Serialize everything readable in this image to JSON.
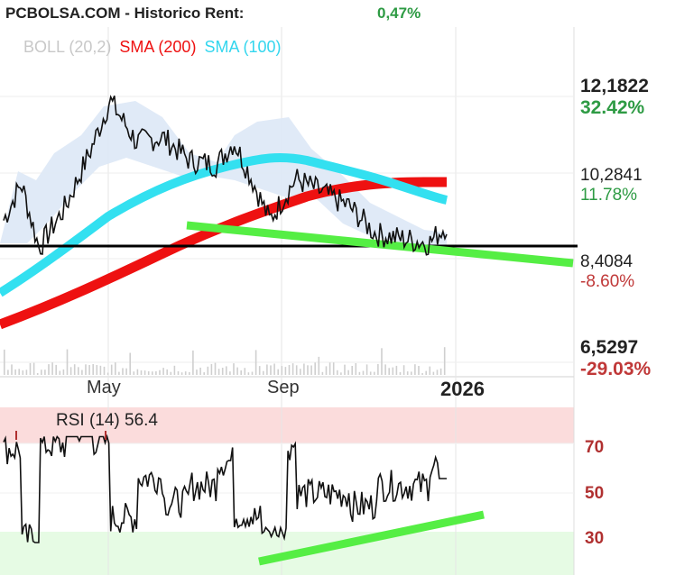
{
  "header": {
    "title": "PCBOLSA.COM - Historico  Rent:",
    "rent": "0,47%"
  },
  "legend": {
    "boll": "BOLL (20,2)",
    "sma200": "SMA (200)",
    "sma100": "SMA (100)"
  },
  "price_axis": [
    {
      "price": "12,1822",
      "pct": "32.42%"
    },
    {
      "price": "10,2841",
      "pct": "11.78%"
    },
    {
      "price": "8,4084",
      "pct": "-8.60%"
    },
    {
      "price": "6,5297",
      "pct": "-29.03%"
    }
  ],
  "x_axis": [
    "May",
    "Sep",
    "2026"
  ],
  "rsi": {
    "title": "RSI (14) 56.4",
    "levels": [
      "70",
      "50",
      "30"
    ]
  },
  "colors": {
    "price_line": "#000000",
    "sma200": "#ee1111",
    "sma100": "#33e0f0",
    "boll_band": "#dde8f6",
    "trendline": "#55ee44",
    "support": "#000000",
    "rsi_overbought": "#fbdcdc",
    "rsi_oversold": "#e6fbe4"
  },
  "chart_data": {
    "type": "line",
    "title": "PCBOLSA.COM - Historico",
    "price_scale": [
      6.5297,
      12.1822
    ],
    "x": [
      "May",
      "Sep",
      "2026"
    ],
    "series": [
      {
        "name": "SMA (200)",
        "points": [
          [
            0,
            7.1
          ],
          [
            0.1,
            7.45
          ],
          [
            0.2,
            7.85
          ],
          [
            0.3,
            8.3
          ],
          [
            0.4,
            8.75
          ],
          [
            0.5,
            9.2
          ],
          [
            0.6,
            9.6
          ],
          [
            0.7,
            10.0
          ],
          [
            0.8,
            10.2
          ],
          [
            0.9,
            10.3
          ],
          [
            1.0,
            10.3
          ]
        ]
      },
      {
        "name": "SMA (100)",
        "points": [
          [
            0,
            7.5
          ],
          [
            0.1,
            8.1
          ],
          [
            0.2,
            8.95
          ],
          [
            0.3,
            9.75
          ],
          [
            0.4,
            10.3
          ],
          [
            0.5,
            10.6
          ],
          [
            0.6,
            10.7
          ],
          [
            0.7,
            10.5
          ],
          [
            0.8,
            10.35
          ],
          [
            0.9,
            10.15
          ],
          [
            1.0,
            9.8
          ]
        ]
      },
      {
        "name": "Price",
        "points": [
          [
            0,
            9.3
          ],
          [
            0.04,
            10.1
          ],
          [
            0.08,
            8.7
          ],
          [
            0.14,
            9.6
          ],
          [
            0.2,
            10.9
          ],
          [
            0.24,
            11.9
          ],
          [
            0.3,
            11.0
          ],
          [
            0.36,
            11.1
          ],
          [
            0.42,
            10.6
          ],
          [
            0.48,
            10.5
          ],
          [
            0.52,
            11.0
          ],
          [
            0.56,
            10.2
          ],
          [
            0.6,
            9.3
          ],
          [
            0.66,
            10.2
          ],
          [
            0.72,
            9.9
          ],
          [
            0.78,
            9.6
          ],
          [
            0.84,
            9.0
          ],
          [
            0.9,
            8.9
          ],
          [
            0.96,
            8.8
          ],
          [
            1.0,
            9.2
          ]
        ]
      }
    ]
  }
}
